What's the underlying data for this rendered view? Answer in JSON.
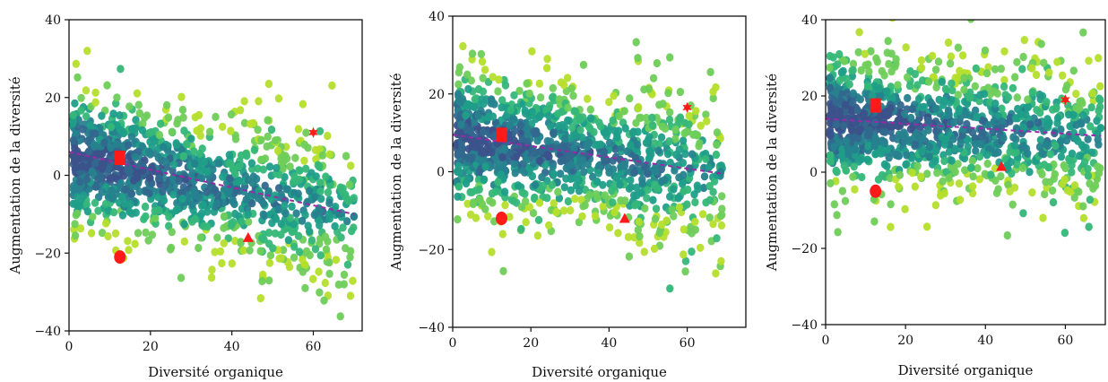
{
  "chart_data": [
    {
      "type": "scatter",
      "xlabel": "Diversité organique",
      "ylabel": "Augmentation de la diversité",
      "xlim": [
        0,
        72
      ],
      "ylim": [
        -40,
        40
      ],
      "xticks": [
        0,
        20,
        40,
        60
      ],
      "yticks": [
        -40,
        -20,
        0,
        20,
        40
      ],
      "grid": false,
      "cloud": {
        "x_range": [
          1,
          70
        ],
        "y_center_at_x0": 5,
        "slope": -0.22,
        "spread": 8.5
      },
      "trend_line": {
        "x": [
          0,
          70
        ],
        "y": [
          6,
          -10
        ],
        "color": "#9b2aa8",
        "style": "dashed"
      },
      "highlight_points": [
        {
          "marker": "square",
          "x": 12.5,
          "y": 4.5,
          "color": "#ff1a1a"
        },
        {
          "marker": "circle",
          "x": 12.5,
          "y": -21,
          "color": "#ff1a1a"
        },
        {
          "marker": "triangle",
          "x": 44,
          "y": -16,
          "color": "#ff1a1a"
        },
        {
          "marker": "star",
          "x": 60,
          "y": 11,
          "color": "#ff1a1a"
        }
      ]
    },
    {
      "type": "scatter",
      "xlabel": "Diversité organique",
      "ylabel": "Augmentation de la diversité",
      "xlim": [
        0,
        75
      ],
      "ylim": [
        -40,
        40
      ],
      "xticks": [
        0,
        20,
        40,
        60
      ],
      "yticks": [
        -40,
        -20,
        0,
        20,
        40
      ],
      "grid": false,
      "cloud": {
        "x_range": [
          1,
          69
        ],
        "y_center_at_x0": 9,
        "slope": -0.14,
        "spread": 8.5
      },
      "trend_line": {
        "x": [
          0,
          69
        ],
        "y": [
          9.5,
          -0.5
        ],
        "color": "#9b2aa8",
        "style": "dashed"
      },
      "highlight_points": [
        {
          "marker": "square",
          "x": 12.5,
          "y": 9.5,
          "color": "#ff1a1a"
        },
        {
          "marker": "circle",
          "x": 12.5,
          "y": -12,
          "color": "#ff1a1a"
        },
        {
          "marker": "triangle",
          "x": 44,
          "y": -12,
          "color": "#ff1a1a"
        },
        {
          "marker": "star",
          "x": 60,
          "y": 16.5,
          "color": "#ff1a1a"
        }
      ]
    },
    {
      "type": "scatter",
      "xlabel": "Diversité organique",
      "ylabel": "Augmentation de la diversité",
      "xlim": [
        0,
        70
      ],
      "ylim": [
        -40,
        40
      ],
      "xticks": [
        0,
        20,
        40,
        60
      ],
      "yticks": [
        -40,
        -20,
        0,
        20,
        40
      ],
      "grid": false,
      "cloud": {
        "x_range": [
          1,
          69
        ],
        "y_center_at_x0": 14,
        "slope": -0.07,
        "spread": 8.5
      },
      "trend_line": {
        "x": [
          0,
          69
        ],
        "y": [
          14,
          9.5
        ],
        "color": "#9b2aa8",
        "style": "dashed"
      },
      "highlight_points": [
        {
          "marker": "square",
          "x": 12.5,
          "y": 17.5,
          "color": "#ff1a1a"
        },
        {
          "marker": "circle",
          "x": 12.5,
          "y": -5,
          "color": "#ff1a1a"
        },
        {
          "marker": "triangle",
          "x": 44,
          "y": 1.5,
          "color": "#ff1a1a"
        },
        {
          "marker": "star",
          "x": 60,
          "y": 19,
          "color": "#ff1a1a"
        }
      ]
    }
  ],
  "colors": {
    "colormap": "viridis",
    "palette": [
      "#3b528b",
      "#31688e",
      "#26828e",
      "#1f9e89",
      "#35b779",
      "#6ece58",
      "#b5de2b"
    ],
    "axis": "#111111"
  }
}
